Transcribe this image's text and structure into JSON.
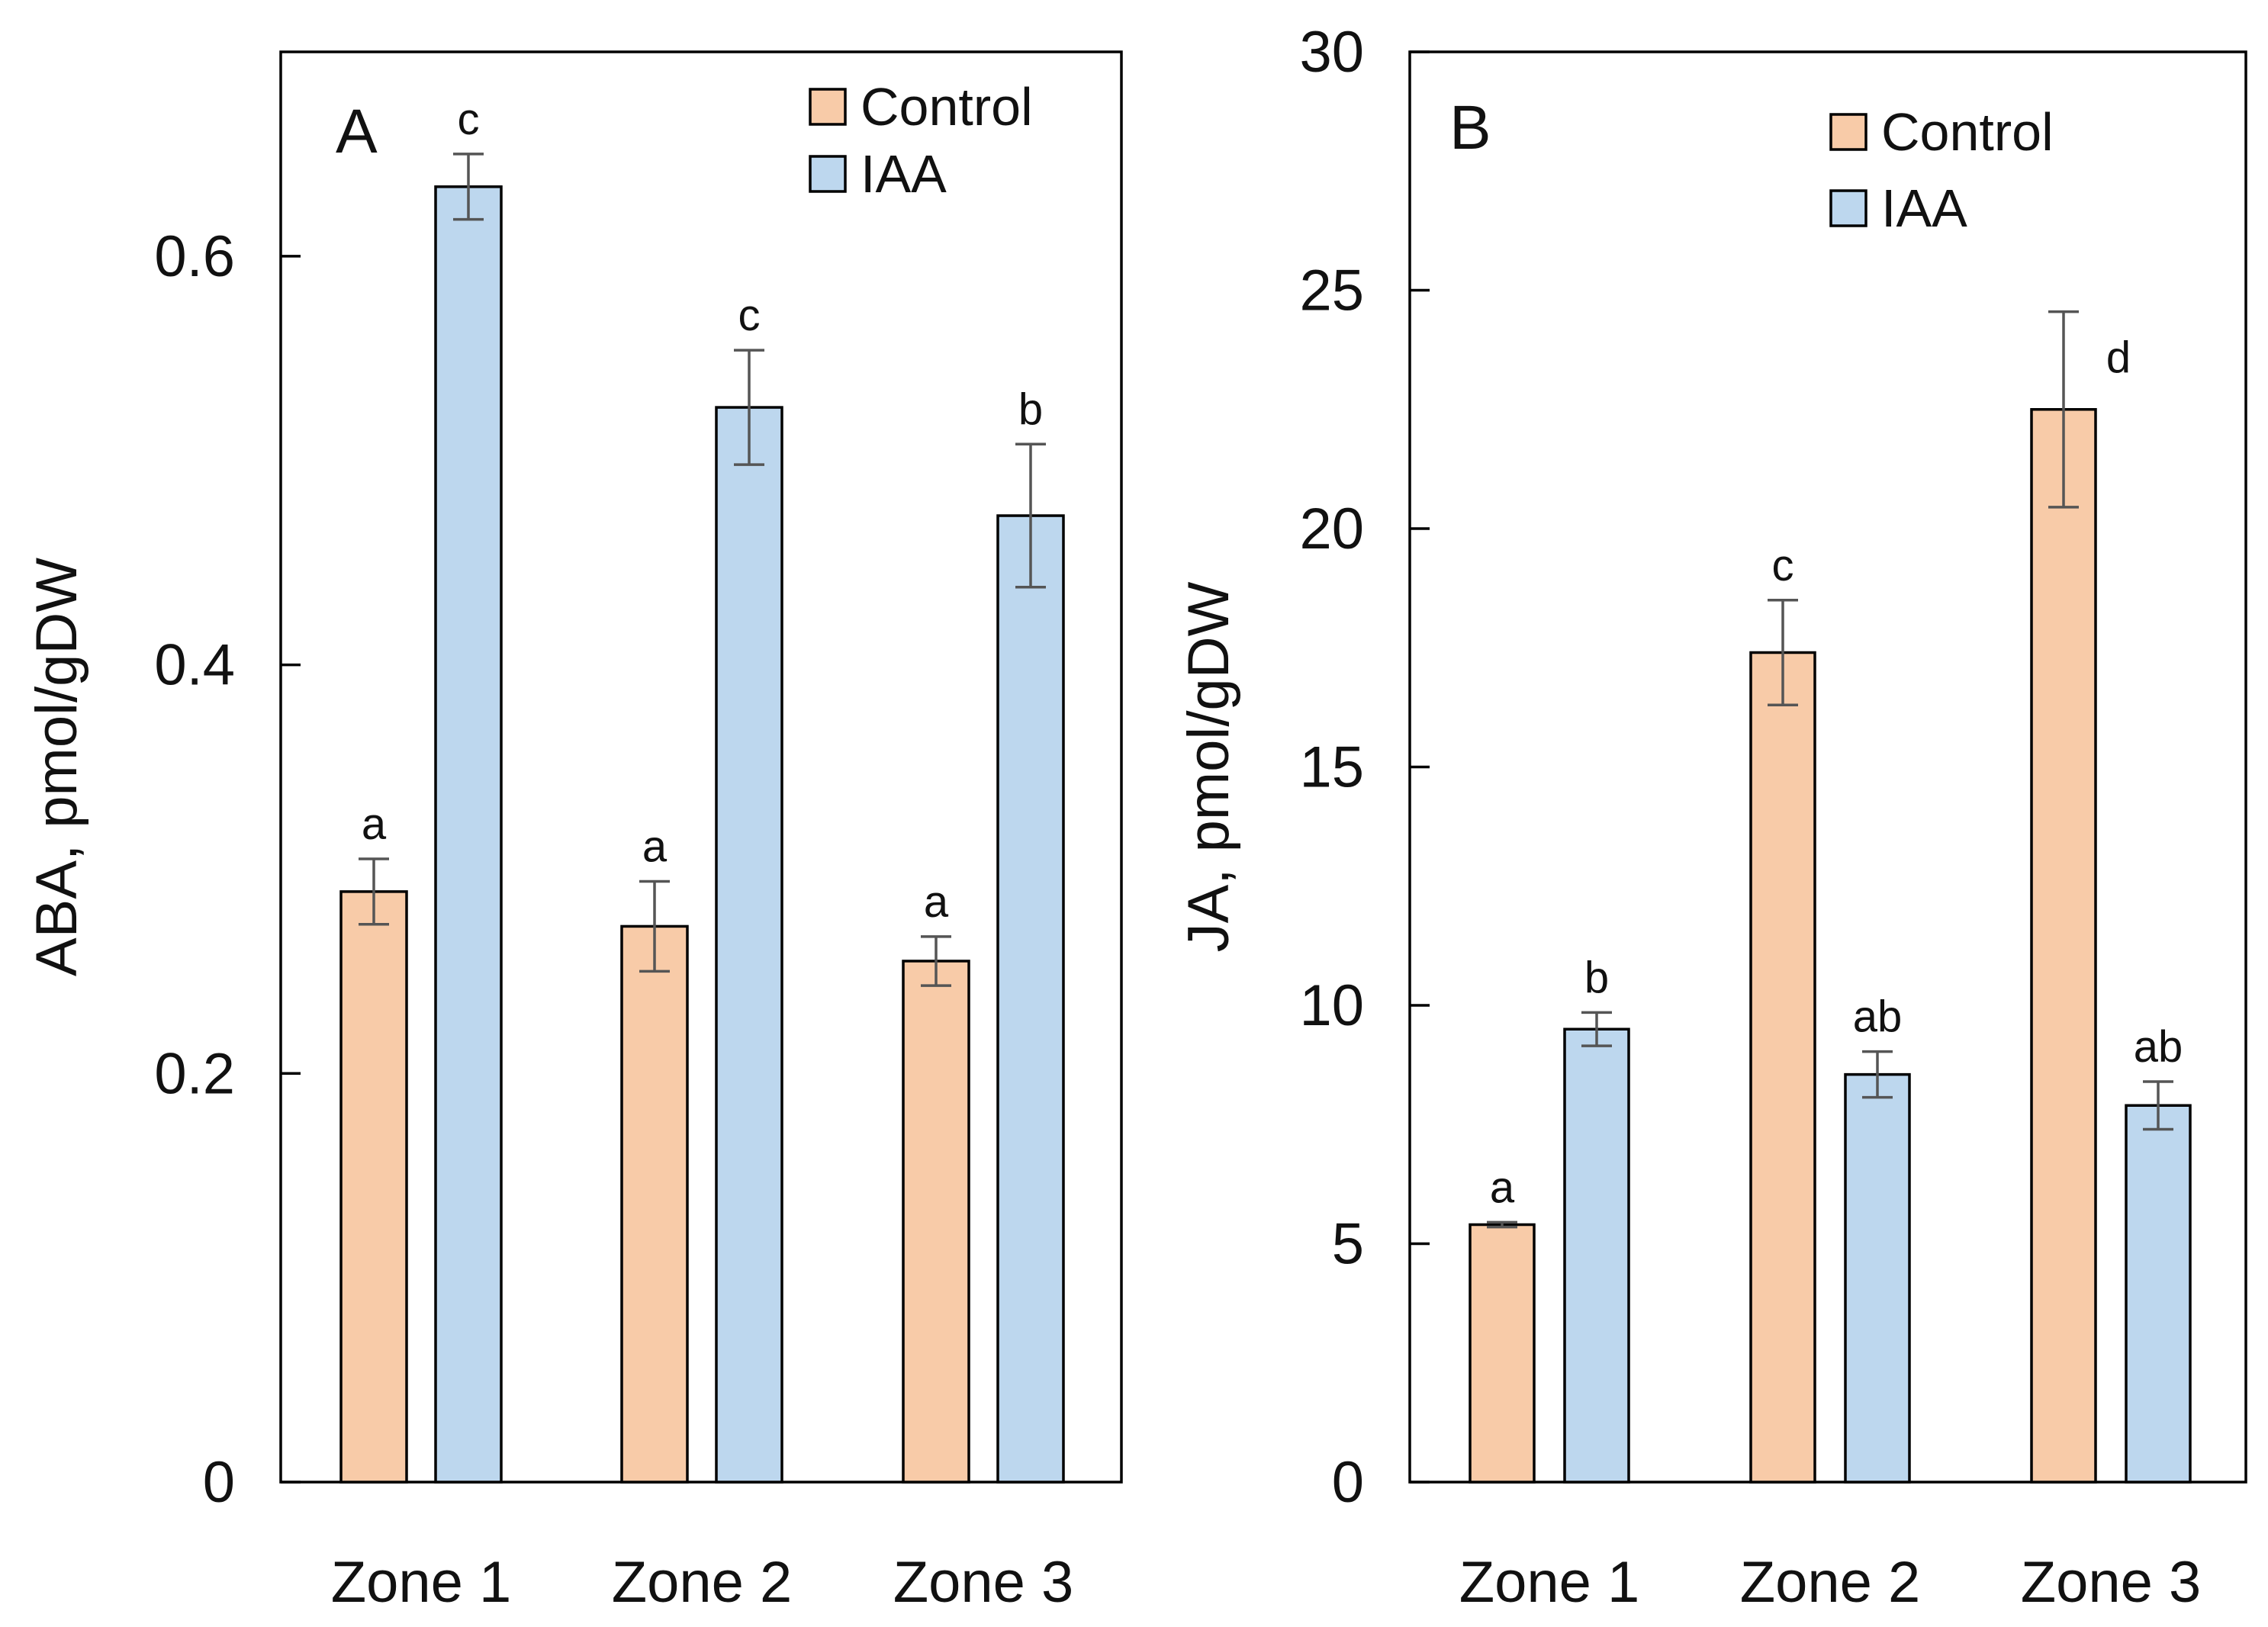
{
  "chart_data": [
    {
      "type": "bar",
      "panel": "A",
      "ylabel": "ABA, pmol/gDW",
      "xlabel": "",
      "ylim": [
        0,
        0.7
      ],
      "yticks": [
        0,
        0.2,
        0.4,
        0.6
      ],
      "ytick_labels": [
        "0",
        "0.2",
        "0.4",
        "0.6"
      ],
      "categories": [
        "Zone 1",
        "Zone 2",
        "Zone 3"
      ],
      "legend_position": "top-right",
      "series": [
        {
          "name": "Control",
          "color": "#f8cba8",
          "values": [
            0.289,
            0.272,
            0.255
          ],
          "errors": [
            0.016,
            0.022,
            0.012
          ],
          "labels": [
            "a",
            "a",
            "a"
          ]
        },
        {
          "name": "IAA",
          "color": "#bdd7ee",
          "values": [
            0.634,
            0.526,
            0.473
          ],
          "errors": [
            0.016,
            0.028,
            0.035
          ],
          "labels": [
            "c",
            "c",
            "b"
          ]
        }
      ]
    },
    {
      "type": "bar",
      "panel": "B",
      "ylabel": "JA, pmol/gDW",
      "xlabel": "",
      "ylim": [
        0,
        30
      ],
      "yticks": [
        0,
        5,
        10,
        15,
        20,
        25,
        30
      ],
      "ytick_labels": [
        "0",
        "5",
        "10",
        "15",
        "20",
        "25",
        "30"
      ],
      "categories": [
        "Zone 1",
        "Zone 2",
        "Zone 3"
      ],
      "legend_position": "top-right",
      "series": [
        {
          "name": "Control",
          "color": "#f8cba8",
          "values": [
            5.4,
            17.4,
            22.5
          ],
          "errors": [
            0.05,
            1.1,
            2.05
          ],
          "labels": [
            "a",
            "c",
            "d"
          ]
        },
        {
          "name": "IAA",
          "color": "#bdd7ee",
          "values": [
            9.5,
            8.55,
            7.9
          ],
          "errors": [
            0.35,
            0.48,
            0.5
          ],
          "labels": [
            "b",
            "ab",
            "ab"
          ]
        }
      ]
    }
  ]
}
